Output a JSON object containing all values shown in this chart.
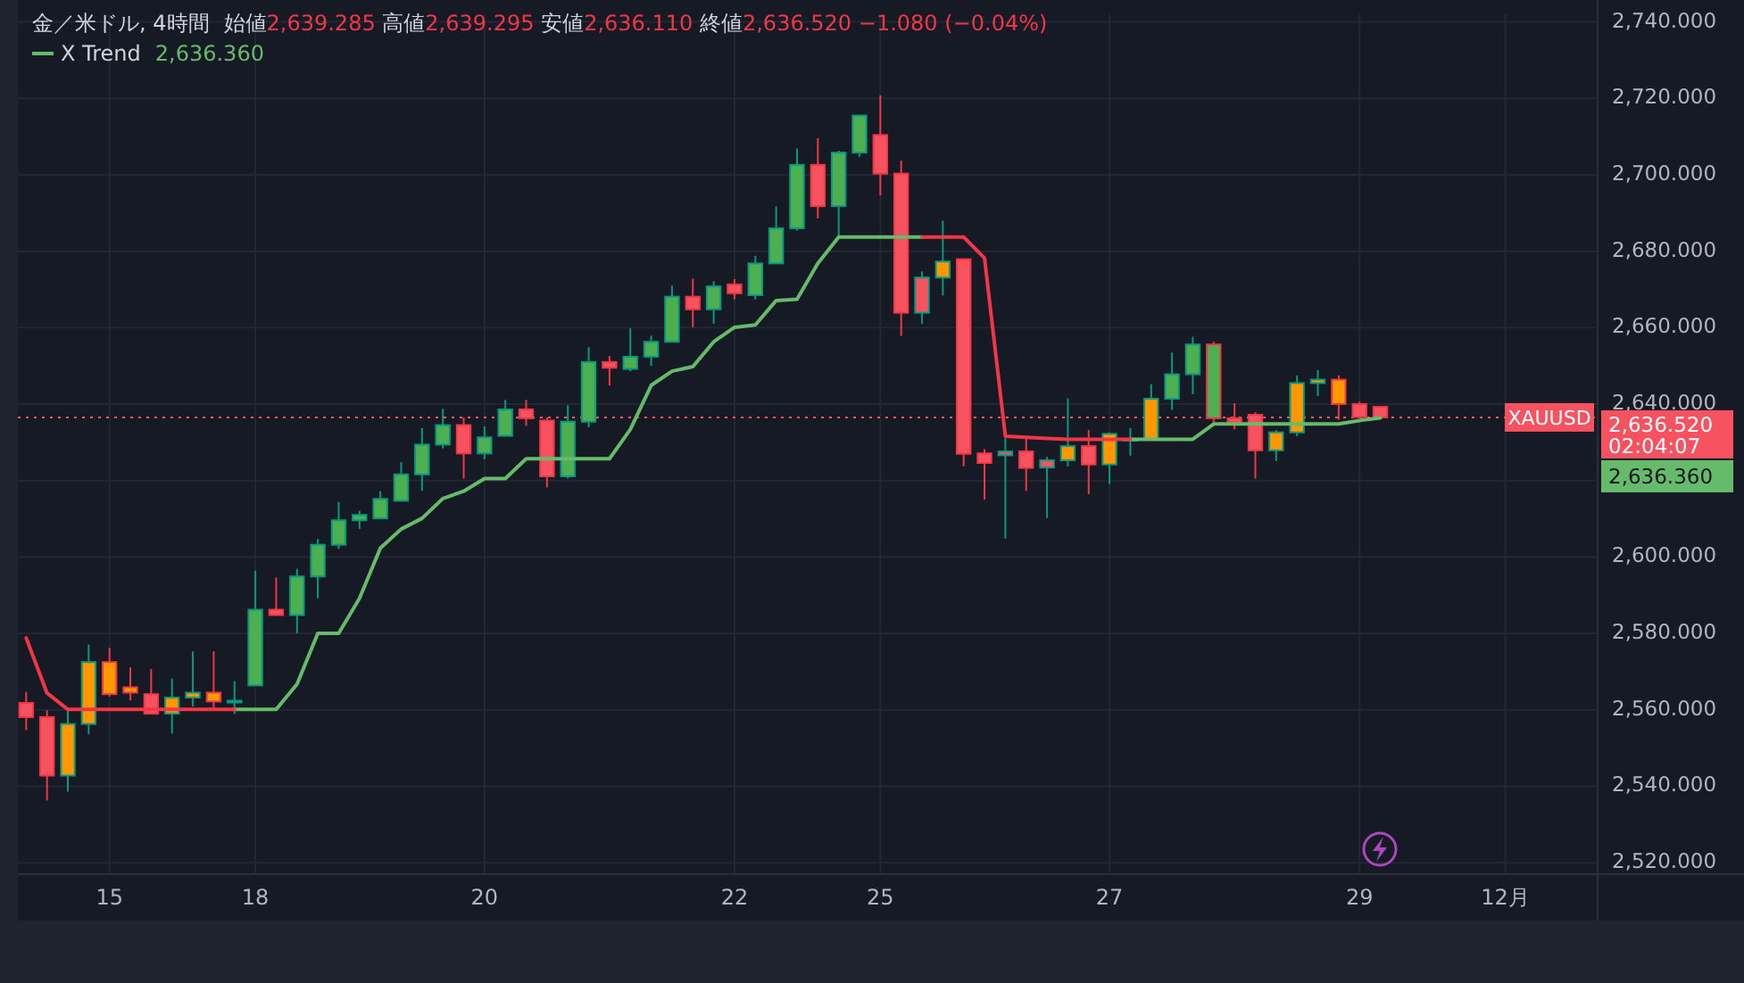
{
  "chart_data": {
    "type": "candlestick",
    "title": "金／米ドル, 4時間",
    "subtitle": "始値2,639.285 高値2,639.295 安値2,636.110 終値2,636.520 −1.080 (−0.04%)",
    "categories": [
      null,
      null,
      null,
      null,
      "15",
      null,
      null,
      null,
      null,
      null,
      null,
      "18",
      null,
      null,
      null,
      null,
      null,
      null,
      null,
      null,
      null,
      null,
      "20",
      null,
      null,
      null,
      null,
      null,
      null,
      null,
      null,
      null,
      null,
      null,
      "22",
      null,
      null,
      null,
      null,
      null,
      null,
      "25",
      null,
      null,
      null,
      null,
      null,
      null,
      null,
      null,
      null,
      null,
      "27",
      null,
      null,
      null,
      null,
      null,
      null,
      null,
      null,
      null,
      null,
      null,
      "29",
      null,
      null,
      null,
      null,
      null,
      null,
      "12月",
      null,
      null,
      null,
      null
    ],
    "ohlc": [
      [
        2561.8,
        2564.7,
        2554.7,
        2558.1
      ],
      [
        2558.1,
        2559.9,
        2536.3,
        2542.8
      ],
      [
        2542.8,
        2559.8,
        2538.6,
        2556.3
      ],
      [
        2556.3,
        2577.1,
        2553.6,
        2572.5
      ],
      [
        2572.5,
        2576.2,
        2563.5,
        2564.1
      ],
      [
        2565.9,
        2571.1,
        2562.5,
        2564.5
      ],
      [
        2564.1,
        2570.7,
        2559.0,
        2559.0
      ],
      [
        2559.0,
        2568.2,
        2553.8,
        2563.2
      ],
      [
        2563.2,
        2575.3,
        2560.9,
        2564.5
      ],
      [
        2564.5,
        2575.3,
        2560.2,
        2562.2
      ],
      [
        2562.2,
        2567.5,
        2558.9,
        2562.4
      ],
      [
        2566.4,
        2596.4,
        2566.4,
        2586.2
      ],
      [
        2586.2,
        2594.6,
        2584.8,
        2584.8
      ],
      [
        2584.8,
        2596.9,
        2580.0,
        2594.9
      ],
      [
        2594.9,
        2604.7,
        2589.2,
        2603.2
      ],
      [
        2603.2,
        2614.4,
        2602.1,
        2609.6
      ],
      [
        2609.6,
        2612.1,
        2607.3,
        2611.0
      ],
      [
        2610.1,
        2617.2,
        2610.1,
        2615.2
      ],
      [
        2614.7,
        2624.8,
        2614.7,
        2621.6
      ],
      [
        2621.6,
        2633.7,
        2617.3,
        2629.4
      ],
      [
        2629.4,
        2638.8,
        2628.4,
        2634.5
      ],
      [
        2634.5,
        2636.5,
        2620.5,
        2627.1
      ],
      [
        2627.1,
        2634.2,
        2625.6,
        2631.3
      ],
      [
        2631.7,
        2641.1,
        2631.7,
        2638.6
      ],
      [
        2638.6,
        2641.1,
        2634.3,
        2636.3
      ],
      [
        2635.7,
        2636.5,
        2618.2,
        2621.1
      ],
      [
        2621.1,
        2639.7,
        2620.5,
        2635.4
      ],
      [
        2635.4,
        2654.9,
        2633.9,
        2651.0
      ],
      [
        2651.0,
        2652.6,
        2644.9,
        2649.5
      ],
      [
        2649.2,
        2659.8,
        2648.6,
        2652.4
      ],
      [
        2652.4,
        2657.9,
        2650.0,
        2656.3
      ],
      [
        2656.3,
        2671.0,
        2656.3,
        2668.1
      ],
      [
        2668.1,
        2672.8,
        2660.1,
        2664.8
      ],
      [
        2664.8,
        2672.2,
        2661.0,
        2670.8
      ],
      [
        2671.3,
        2672.7,
        2667.4,
        2669.0
      ],
      [
        2668.5,
        2678.8,
        2667.4,
        2676.8
      ],
      [
        2676.8,
        2691.7,
        2676.8,
        2686.0
      ],
      [
        2686.0,
        2706.9,
        2685.4,
        2702.6
      ],
      [
        2702.6,
        2709.6,
        2688.6,
        2691.8
      ],
      [
        2691.8,
        2706.3,
        2684.0,
        2705.8
      ],
      [
        2705.8,
        2715.5,
        2704.7,
        2715.5
      ],
      [
        2710.4,
        2720.8,
        2694.6,
        2700.3
      ],
      [
        2700.3,
        2703.7,
        2657.8,
        2663.9
      ],
      [
        2663.9,
        2674.7,
        2661.0,
        2673.1
      ],
      [
        2673.1,
        2688.0,
        2668.4,
        2677.3
      ],
      [
        2677.9,
        2677.9,
        2623.7,
        2627.0
      ],
      [
        2627.1,
        2628.2,
        2615.0,
        2624.6
      ],
      [
        2626.6,
        2631.1,
        2604.8,
        2627.6
      ],
      [
        2627.6,
        2631.1,
        2617.3,
        2623.3
      ],
      [
        2623.4,
        2626.2,
        2610.2,
        2625.3
      ],
      [
        2625.3,
        2641.5,
        2623.7,
        2629.0
      ],
      [
        2629.0,
        2633.2,
        2616.4,
        2624.2
      ],
      [
        2624.2,
        2632.6,
        2619.1,
        2632.2
      ],
      [
        2630.6,
        2633.7,
        2626.5,
        2630.9
      ],
      [
        2630.8,
        2645.2,
        2630.8,
        2641.4
      ],
      [
        2641.4,
        2653.5,
        2638.5,
        2647.8
      ],
      [
        2647.8,
        2657.6,
        2642.6,
        2655.6
      ],
      [
        2655.6,
        2656.3,
        2634.9,
        2636.3
      ],
      [
        2636.3,
        2640.2,
        2633.4,
        2635.2
      ],
      [
        2637.2,
        2637.9,
        2620.5,
        2627.9
      ],
      [
        2627.9,
        2633.2,
        2625.1,
        2632.6
      ],
      [
        2632.6,
        2647.5,
        2631.6,
        2645.5
      ],
      [
        2645.5,
        2648.9,
        2642.1,
        2646.4
      ],
      [
        2646.4,
        2647.5,
        2635.9,
        2640.0
      ],
      [
        2640.0,
        2640.6,
        2636.3,
        2636.6
      ],
      [
        2639.285,
        2639.295,
        2636.11,
        2636.52
      ],
      null,
      null,
      null,
      null,
      null,
      null,
      null,
      null,
      null,
      null
    ],
    "colors": [
      "#f7525f",
      "#f7525f",
      "#ff9800",
      "#ff9800",
      "#ff9800",
      "#ff9800",
      "#f7525f",
      "#ff9800",
      "#ff9800",
      "#ff9800",
      "#4caf50",
      "#4caf50",
      "#f7525f",
      "#4caf50",
      "#4caf50",
      "#4caf50",
      "#4caf50",
      "#4caf50",
      "#4caf50",
      "#4caf50",
      "#4caf50",
      "#f7525f",
      "#4caf50",
      "#4caf50",
      "#f7525f",
      "#f7525f",
      "#4caf50",
      "#4caf50",
      "#f7525f",
      "#4caf50",
      "#4caf50",
      "#4caf50",
      "#f7525f",
      "#4caf50",
      "#f7525f",
      "#4caf50",
      "#4caf50",
      "#4caf50",
      "#f7525f",
      "#4caf50",
      "#4caf50",
      "#f7525f",
      "#f7525f",
      "#f7525f",
      "#ff9800",
      "#f7525f",
      "#f7525f",
      "#f7525f",
      "#f7525f",
      "#f7525f",
      "#ff9800",
      "#f7525f",
      "#ff9800",
      "#4caf50",
      "#ff9800",
      "#4caf50",
      "#4caf50",
      "#4caf50",
      "#f7525f",
      "#f7525f",
      "#ff9800",
      "#ff9800",
      "#ff9800",
      "#ff9800",
      "#f7525f",
      "#f7525f",
      null,
      null,
      null,
      null,
      null,
      null,
      null,
      null,
      null,
      null
    ],
    "series": [
      {
        "name": "X Trend",
        "type": "line",
        "color": "#66bb6a",
        "values": [
          null,
          null,
          null,
          null,
          null,
          null,
          null,
          null,
          null,
          null,
          2560.1,
          2560.1,
          2560.1,
          2566.7,
          2580.0,
          2580.0,
          2589.2,
          2602.3,
          2607.3,
          2610.1,
          2615.3,
          2617.2,
          2620.5,
          2620.5,
          2625.7,
          2625.7,
          2625.7,
          2625.7,
          2625.7,
          2633.4,
          2644.9,
          2648.6,
          2649.8,
          2656.3,
          2660.1,
          2660.7,
          2667.1,
          2667.4,
          2676.8,
          2683.7,
          2683.7,
          2683.7,
          2683.7,
          2683.7,
          null,
          null,
          null,
          null,
          null,
          null,
          null,
          null,
          null,
          2630.8,
          2630.8,
          2630.8,
          2630.8,
          2634.8,
          2634.8,
          2634.8,
          2634.8,
          2634.8,
          2634.8,
          2634.8,
          2635.7,
          2636.36,
          null,
          null,
          null,
          null,
          null,
          null,
          null,
          null,
          null,
          null
        ]
      },
      {
        "type": "line",
        "color": "#f23645",
        "values": [
          2578.8,
          2564.4,
          2560.1,
          2560.1,
          2560.1,
          2560.1,
          2560.1,
          2560.1,
          2560.1,
          2560.1,
          2560.1,
          null,
          null,
          null,
          null,
          null,
          null,
          null,
          null,
          null,
          null,
          null,
          null,
          null,
          null,
          null,
          null,
          null,
          null,
          null,
          null,
          null,
          null,
          null,
          null,
          null,
          null,
          null,
          null,
          null,
          null,
          null,
          null,
          2683.7,
          2683.7,
          2683.7,
          2678.2,
          2631.6,
          2631.3,
          2631.0,
          2630.8,
          2630.8,
          2630.8,
          2630.8,
          null,
          null,
          null,
          null,
          null,
          null,
          null,
          null,
          null,
          null,
          null,
          null,
          null,
          null,
          null,
          null,
          null,
          null,
          null,
          null,
          null,
          null
        ]
      }
    ],
    "ylim": [
      2517,
      2742
    ],
    "yticks": [
      {
        "value": 2520,
        "label": "2,520.000"
      },
      {
        "value": 2540,
        "label": "2,540.000"
      },
      {
        "value": 2560,
        "label": "2,560.000"
      },
      {
        "value": 2580,
        "label": "2,580.000"
      },
      {
        "value": 2600,
        "label": "2,600.000"
      },
      {
        "value": 2620,
        "label": null
      },
      {
        "value": 2640,
        "label": "2,640.000"
      },
      {
        "value": 2660,
        "label": "2,660.000"
      },
      {
        "value": 2680,
        "label": "2,680.000"
      },
      {
        "value": 2700,
        "label": "2,700.000"
      },
      {
        "value": 2720,
        "label": "2,720.000"
      },
      {
        "value": 2740,
        "label": "2,740.000"
      }
    ],
    "grid": true,
    "legend": "top left",
    "ref_lines": [
      {
        "axis": "y",
        "value": 2636.52,
        "label": "2,636.520",
        "color": "#f7525f",
        "line_style": "dotted"
      }
    ],
    "annotations": [
      "XAUUSD",
      "02:04:07",
      "2,636.360",
      "2,636.360"
    ]
  }
}
